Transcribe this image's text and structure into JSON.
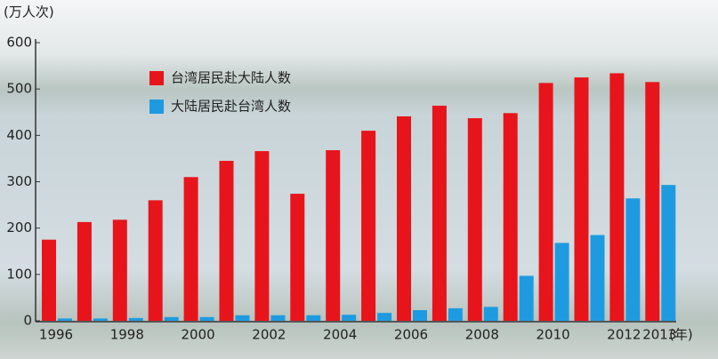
{
  "chart_data": {
    "type": "bar",
    "y_label": "(万人次)",
    "x_unit": "(年)",
    "categories": [
      "1996",
      null,
      "1998",
      null,
      "2000",
      null,
      "2002",
      null,
      "2004",
      null,
      "2006",
      null,
      "2008",
      null,
      "2010",
      null,
      "2012",
      "2013"
    ],
    "series": [
      {
        "name": "台湾居民赴大陆人数",
        "color": "#e8141b",
        "values": [
          175,
          213,
          218,
          260,
          310,
          345,
          366,
          274,
          368,
          410,
          441,
          464,
          437,
          448,
          513,
          525,
          534,
          515
        ]
      },
      {
        "name": "大陆居民赴台湾人数",
        "color": "#1e9be0",
        "values": [
          5,
          5,
          6,
          8,
          8,
          12,
          12,
          12,
          13,
          17,
          23,
          27,
          30,
          97,
          168,
          185,
          264,
          293
        ]
      }
    ],
    "ylim": [
      0,
      600
    ],
    "yticks": [
      0,
      100,
      200,
      300,
      400,
      500,
      600
    ]
  }
}
